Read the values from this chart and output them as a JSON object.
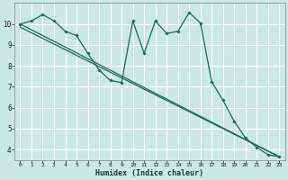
{
  "xlabel": "Humidex (Indice chaleur)",
  "bg_color": "#cce8e4",
  "grid_color": "#ffffff",
  "line_color": "#1a6b5a",
  "xlim": [
    -0.5,
    23.5
  ],
  "ylim": [
    3.5,
    11.0
  ],
  "xtick_vals": [
    0,
    1,
    2,
    3,
    4,
    5,
    6,
    7,
    8,
    9,
    10,
    11,
    12,
    13,
    14,
    15,
    16,
    17,
    18,
    19,
    20,
    21,
    22,
    23
  ],
  "xtick_labels": [
    "0",
    "1",
    "2",
    "3",
    "4",
    "5",
    "6",
    "7",
    "8",
    "9",
    "10",
    "11",
    "12",
    "13",
    "14",
    "15",
    "16",
    "17",
    "18",
    "19",
    "20",
    "21",
    "22",
    "23"
  ],
  "ytick_vals": [
    4,
    5,
    6,
    7,
    8,
    9,
    10
  ],
  "ytick_labels": [
    "4",
    "5",
    "6",
    "7",
    "8",
    "9",
    "10"
  ],
  "curve1_x": [
    0,
    1,
    2,
    3,
    4,
    5,
    6,
    7,
    8,
    9,
    10,
    11,
    12,
    13,
    14,
    15,
    16,
    17,
    18,
    19,
    20,
    21,
    22,
    23
  ],
  "curve1_y": [
    10.0,
    10.15,
    10.45,
    10.15,
    9.65,
    9.45,
    8.6,
    7.8,
    7.3,
    7.2,
    10.15,
    8.6,
    10.15,
    9.55,
    9.65,
    10.55,
    10.05,
    7.25,
    6.35,
    5.35,
    4.55,
    4.1,
    3.75,
    3.65
  ],
  "line1_x": [
    0,
    23
  ],
  "line1_y": [
    10.0,
    3.65
  ],
  "line2_x": [
    0,
    23
  ],
  "line2_y": [
    9.85,
    3.65
  ]
}
